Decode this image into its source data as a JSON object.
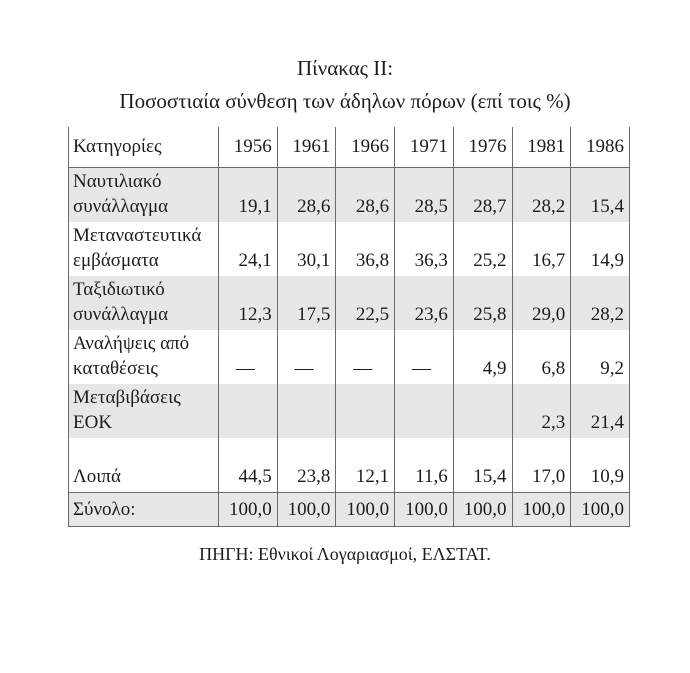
{
  "title": "Πίνακας II:",
  "subtitle": "Ποσοστιαία σύνθεση των άδηλων πόρων (επί τοις %)",
  "source": "ΠΗΓΗ: Εθνικοί Λογαριασμοί, ΕΛΣΤΑΤ.",
  "table": {
    "header": [
      "Κατηγορίες",
      "1956",
      "1961",
      "1966",
      "1971",
      "1976",
      "1981",
      "1986"
    ],
    "rows": [
      {
        "label": "Ναυτιλιακό συνάλλαγμα",
        "values": [
          "19,1",
          "28,6",
          "28,6",
          "28,5",
          "28,7",
          "28,2",
          "15,4"
        ],
        "shaded": true
      },
      {
        "label": "Μεταναστευτικά εμβάσματα",
        "values": [
          "24,1",
          "30,1",
          "36,8",
          "36,3",
          "25,2",
          "16,7",
          "14,9"
        ],
        "shaded": false
      },
      {
        "label": "Ταξιδιωτικό συνάλλαγμα",
        "values": [
          "12,3",
          "17,5",
          "22,5",
          "23,6",
          "25,8",
          "29,0",
          "28,2"
        ],
        "shaded": true
      },
      {
        "label": "Αναλήψεις από καταθέσεις",
        "values": [
          "—",
          "—",
          "—",
          "—",
          "4,9",
          "6,8",
          "9,2"
        ],
        "shaded": false
      },
      {
        "label": "Μεταβιβάσεις ΕΟΚ",
        "values": [
          "",
          "",
          "",
          "",
          "",
          "2,3",
          "21,4"
        ],
        "shaded": true
      },
      {
        "label": "Λοιπά",
        "values": [
          "44,5",
          "23,8",
          "12,1",
          "11,6",
          "15,4",
          "17,0",
          "10,9"
        ],
        "shaded": false
      }
    ],
    "total_row": {
      "label": "Σύνολο:",
      "values": [
        "100,0",
        "100,0",
        "100,0",
        "100,0",
        "100,0",
        "100,0",
        "100,0"
      ]
    }
  },
  "colors": {
    "row_shading": "#e7e7e7",
    "border": "#6a6a6a",
    "text": "#1c1c1c"
  }
}
